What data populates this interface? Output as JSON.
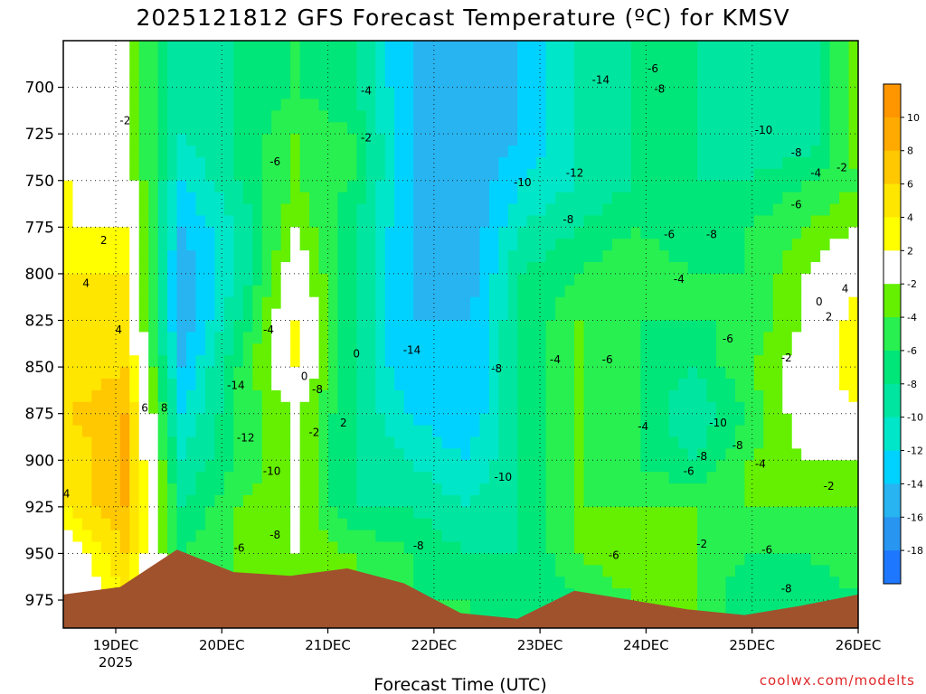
{
  "chart_data": {
    "type": "heatmap",
    "title": "2025121812 GFS Forecast Temperature (ºC) for KMSV",
    "xlabel": "Forecast Time (UTC)",
    "credit": "coolwx.com/modelts",
    "x_tick_labels": [
      "19DEC",
      "20DEC",
      "21DEC",
      "22DEC",
      "23DEC",
      "24DEC",
      "25DEC",
      "26DEC"
    ],
    "x_tick_year": "2025",
    "y_axis": {
      "reversed": true,
      "range": [
        990,
        675
      ]
    },
    "y_ticks": [
      {
        "value": 700,
        "label": "700"
      },
      {
        "value": 725,
        "label": "725"
      },
      {
        "value": 750,
        "label": "750"
      },
      {
        "value": 775,
        "label": "775"
      },
      {
        "value": 800,
        "label": "800"
      },
      {
        "value": 825,
        "label": "825"
      },
      {
        "value": 850,
        "label": "850"
      },
      {
        "value": 875,
        "label": "875"
      },
      {
        "value": 900,
        "label": "900"
      },
      {
        "value": 925,
        "label": "925"
      },
      {
        "value": 950,
        "label": "950"
      },
      {
        "value": 975,
        "label": "975"
      }
    ],
    "grid": true,
    "colorbar": {
      "placement": "right",
      "levels": [
        -20,
        -18,
        -16,
        -14,
        -12,
        -10,
        -8,
        -6,
        -4,
        -2,
        2,
        4,
        6,
        8,
        10,
        12
      ],
      "tick_labels": [
        "10",
        "8",
        "6",
        "4",
        "2",
        "-2",
        "-4",
        "-6",
        "-8",
        "-10",
        "-12",
        "-14",
        "-16",
        "-18"
      ],
      "colors": [
        "#1e78ff",
        "#2896f0",
        "#28b4f0",
        "#00d2ff",
        "#00e6c8",
        "#00e6a0",
        "#00e678",
        "#28f050",
        "#64f000",
        "#ffffff",
        "#ffff00",
        "#ffe600",
        "#ffc800",
        "#ffaa00",
        "#ff9600"
      ]
    },
    "terrain_color": "#a0522d",
    "time_columns": [
      "19DEC 00",
      "19DEC 12",
      "20DEC 00",
      "20DEC 12",
      "21DEC 00",
      "21DEC 12",
      "22DEC 00",
      "22DEC 12",
      "23DEC 00",
      "23DEC 12",
      "24DEC 00",
      "24DEC 12",
      "25DEC 00",
      "25DEC 12",
      "26DEC 00"
    ],
    "pressure_levels": [
      700,
      725,
      750,
      775,
      800,
      825,
      850,
      875,
      900,
      925,
      950,
      975
    ],
    "temperature_grid_approx": [
      [
        0,
        -2,
        -10,
        -8,
        -6,
        -8,
        -14,
        -16,
        -14,
        -10,
        -8,
        -8,
        -10,
        -10,
        -2
      ],
      [
        -2,
        -2,
        -10,
        -8,
        -4,
        -6,
        -14,
        -16,
        -14,
        -10,
        -8,
        -8,
        -10,
        -10,
        -2
      ],
      [
        2,
        0,
        -12,
        -8,
        -4,
        -6,
        -14,
        -16,
        -12,
        -10,
        -8,
        -8,
        -8,
        -6,
        -4
      ],
      [
        2,
        2,
        -14,
        -10,
        -2,
        -8,
        -14,
        -16,
        -10,
        -8,
        -6,
        -8,
        -6,
        -4,
        -2
      ],
      [
        4,
        4,
        -16,
        -10,
        0,
        -8,
        -14,
        -16,
        -8,
        -6,
        -4,
        -6,
        -6,
        -2,
        2
      ],
      [
        4,
        4,
        -16,
        -8,
        2,
        -8,
        -14,
        -14,
        -8,
        -4,
        -6,
        -6,
        -6,
        -2,
        4
      ],
      [
        4,
        6,
        -14,
        -6,
        2,
        -8,
        -14,
        -14,
        -8,
        -4,
        -6,
        -8,
        -4,
        0,
        4
      ],
      [
        6,
        8,
        -12,
        -6,
        -2,
        -8,
        -12,
        -14,
        -8,
        -4,
        -6,
        -10,
        -6,
        0,
        2
      ],
      [
        4,
        8,
        -10,
        -6,
        -2,
        -8,
        -10,
        -12,
        -8,
        -4,
        -6,
        -8,
        -4,
        -2,
        -2
      ],
      [
        4,
        8,
        -8,
        -4,
        -2,
        -8,
        -8,
        -10,
        -8,
        -4,
        -4,
        -4,
        -4,
        -4,
        -4
      ],
      [
        0,
        6,
        -6,
        -4,
        -2,
        -4,
        -6,
        -8,
        -8,
        -4,
        -2,
        -4,
        -6,
        -6,
        -4
      ],
      [
        -2,
        4,
        -4,
        -4,
        -4,
        -4,
        -6,
        -6,
        -8,
        -6,
        -4,
        -4,
        -8,
        -8,
        -6
      ]
    ],
    "surface_pressure_approx": [
      972,
      968,
      948,
      960,
      962,
      958,
      966,
      982,
      985,
      970,
      975,
      980,
      983,
      978,
      972
    ],
    "contour_labels": [
      {
        "text": "-2",
        "t": 0.95,
        "p": 718
      },
      {
        "text": "2",
        "t": 0.62,
        "p": 782
      },
      {
        "text": "4",
        "t": 0.35,
        "p": 805
      },
      {
        "text": "4",
        "t": 0.85,
        "p": 830
      },
      {
        "text": "6",
        "t": 1.25,
        "p": 872
      },
      {
        "text": "8",
        "t": 1.55,
        "p": 872
      },
      {
        "text": "4",
        "t": 0.05,
        "p": 918
      },
      {
        "text": "-4",
        "t": 4.65,
        "p": 702
      },
      {
        "text": "-2",
        "t": 4.65,
        "p": 727
      },
      {
        "text": "-6",
        "t": 3.25,
        "p": 740
      },
      {
        "text": "-4",
        "t": 3.15,
        "p": 830
      },
      {
        "text": "-14",
        "t": 2.65,
        "p": 860
      },
      {
        "text": "-12",
        "t": 2.8,
        "p": 888
      },
      {
        "text": "-10",
        "t": 3.2,
        "p": 906
      },
      {
        "text": "-8",
        "t": 3.25,
        "p": 940
      },
      {
        "text": "-6",
        "t": 2.7,
        "p": 947
      },
      {
        "text": "-8",
        "t": 3.9,
        "p": 862
      },
      {
        "text": "0",
        "t": 4.5,
        "p": 843
      },
      {
        "text": "0",
        "t": 3.7,
        "p": 855
      },
      {
        "text": "2",
        "t": 4.3,
        "p": 880
      },
      {
        "text": "-2",
        "t": 3.85,
        "p": 885
      },
      {
        "text": "-14",
        "t": 8.25,
        "p": 696
      },
      {
        "text": "-6",
        "t": 9.05,
        "p": 690
      },
      {
        "text": "-8",
        "t": 9.15,
        "p": 701
      },
      {
        "text": "-12",
        "t": 7.85,
        "p": 746
      },
      {
        "text": "-10",
        "t": 7.05,
        "p": 751
      },
      {
        "text": "-8",
        "t": 7.75,
        "p": 771
      },
      {
        "text": "-14",
        "t": 5.35,
        "p": 841
      },
      {
        "text": "-8",
        "t": 6.65,
        "p": 851
      },
      {
        "text": "-4",
        "t": 7.55,
        "p": 846
      },
      {
        "text": "-6",
        "t": 8.35,
        "p": 846
      },
      {
        "text": "-10",
        "t": 6.75,
        "p": 909
      },
      {
        "text": "-8",
        "t": 5.45,
        "p": 946
      },
      {
        "text": "-6",
        "t": 8.45,
        "p": 951
      },
      {
        "text": "-6",
        "t": 9.3,
        "p": 779
      },
      {
        "text": "-8",
        "t": 9.95,
        "p": 779
      },
      {
        "text": "-4",
        "t": 9.45,
        "p": 803
      },
      {
        "text": "-10",
        "t": 10.75,
        "p": 723
      },
      {
        "text": "-8",
        "t": 11.25,
        "p": 735
      },
      {
        "text": "-6",
        "t": 11.25,
        "p": 763
      },
      {
        "text": "-6",
        "t": 10.2,
        "p": 835
      },
      {
        "text": "-2",
        "t": 11.1,
        "p": 845
      },
      {
        "text": "-10",
        "t": 10.05,
        "p": 880
      },
      {
        "text": "-8",
        "t": 10.35,
        "p": 892
      },
      {
        "text": "-8",
        "t": 9.8,
        "p": 898
      },
      {
        "text": "-6",
        "t": 9.6,
        "p": 906
      },
      {
        "text": "-4",
        "t": 8.9,
        "p": 882
      },
      {
        "text": "-4",
        "t": 10.7,
        "p": 902
      },
      {
        "text": "-2",
        "t": 9.8,
        "p": 945
      },
      {
        "text": "-6",
        "t": 10.8,
        "p": 948
      },
      {
        "text": "-8",
        "t": 11.1,
        "p": 969
      },
      {
        "text": "-2",
        "t": 11.75,
        "p": 914
      },
      {
        "text": "-4",
        "t": 11.55,
        "p": 746
      },
      {
        "text": "-2",
        "t": 11.95,
        "p": 743
      },
      {
        "text": "0",
        "t": 11.6,
        "p": 815
      },
      {
        "text": "2",
        "t": 11.75,
        "p": 823
      },
      {
        "text": "4",
        "t": 12.0,
        "p": 808
      }
    ]
  }
}
